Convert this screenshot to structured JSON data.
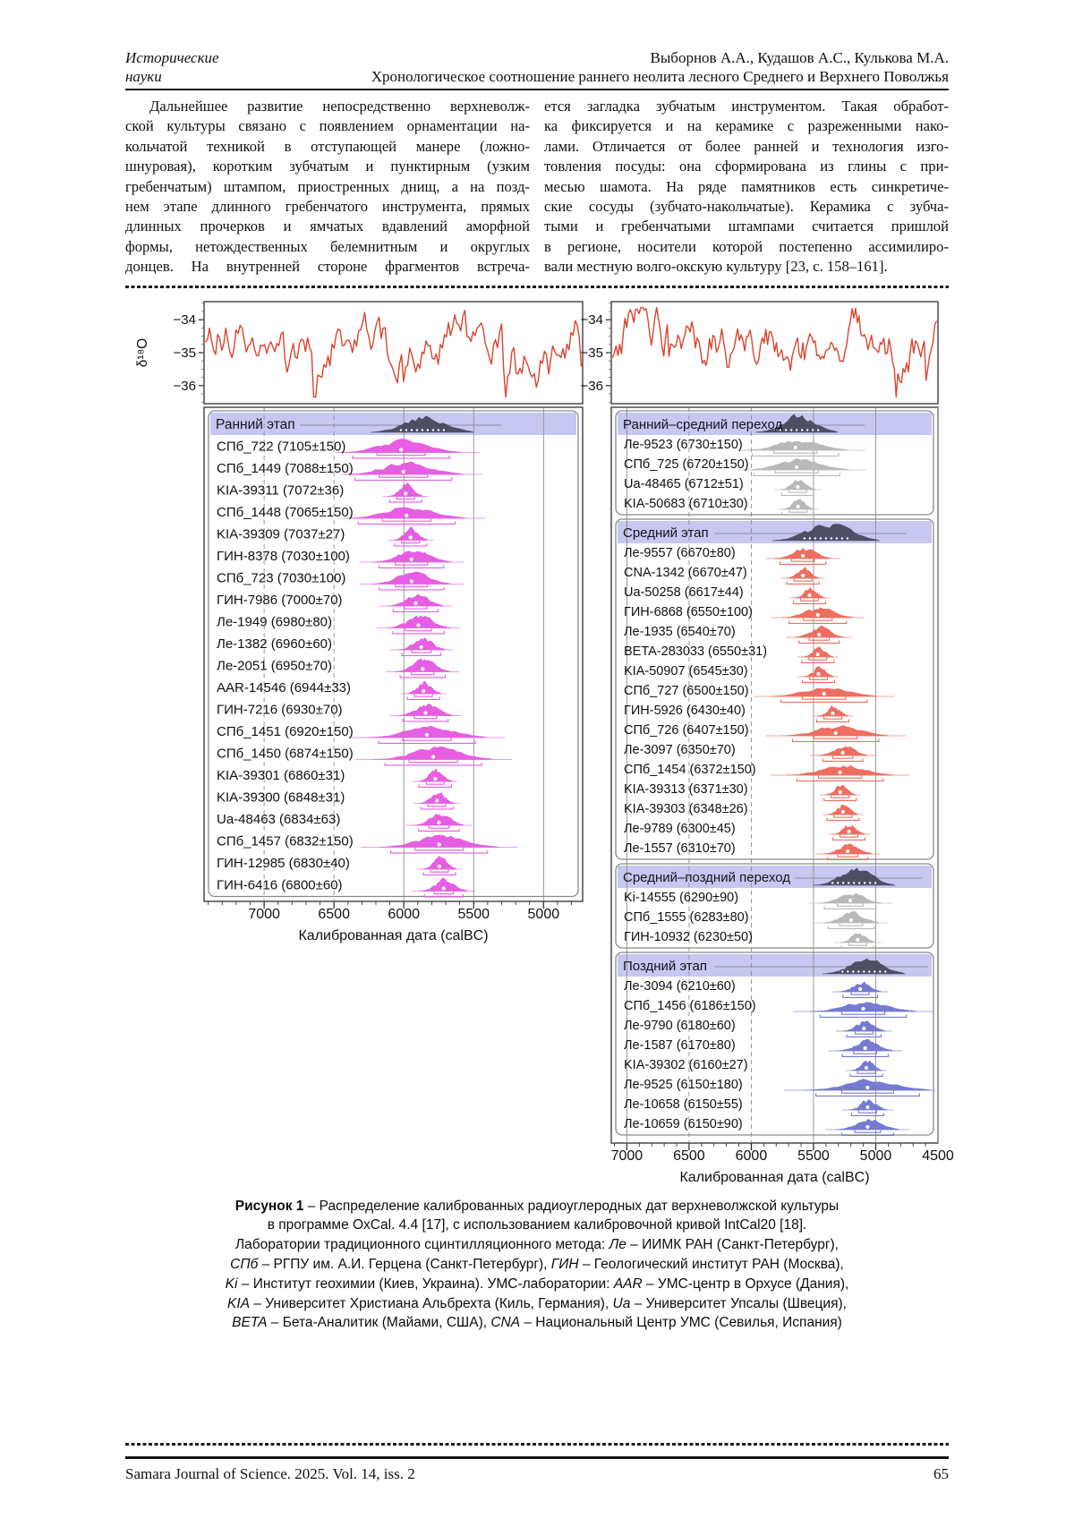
{
  "header": {
    "section_line1": "Исторические",
    "section_line2": "науки",
    "authors": "Выборнов А.А., Кудашов А.С., Кулькова М.А.",
    "title": "Хронологическое соотношение раннего неолита лесного Среднего и Верхнего Поволжья"
  },
  "body": {
    "left_lines": [
      "Дальнейшее развитие непосредственно верхневолж-",
      "ской культуры связано с появлением орнаментации на-",
      "кольчатой техникой в отступающей манере (ложно-",
      "шнуровая), коротким зубчатым и пунктирным (узким",
      "гребенчатым) штампом, приостренных днищ, а на позд-",
      "нем этапе длинного гребенчатого инструмента, прямых",
      "длинных прочерков и ямчатых вдавлений аморфной",
      "формы, нетождественных белемнитным и округлых",
      "донцев. На внутренней стороне фрагментов встреча-"
    ],
    "right_lines": [
      "ется загладка зубчатым инструментом. Такая обработ-",
      "ка фиксируется и на керамике с разреженными нако-",
      "лами. Отличается от более ранней и технология изго-",
      "товления посуды: она сформирована из глины с при-",
      "месью шамота. На ряде памятников есть синкретиче-",
      "ские сосуды (зубчато-накольчатые). Керамика с зубча-",
      "тыми и гребенчатыми штампами считается пришлой",
      "в регионе, носители которой постепенно ассимилиро-",
      "вали местную волго-окскую культуру [23, с. 158–161]."
    ]
  },
  "figure": {
    "oxy": {
      "ylabel": "δ¹⁸O",
      "yticks": [
        -34,
        -35,
        -36
      ],
      "curve_color": "#d9452f"
    },
    "axis_title": "Калиброванная дата (calBC)",
    "colors": {
      "early": "#e65fe2",
      "transition": "#b9b9b9",
      "middle": "#ee6e62",
      "late": "#767bd1",
      "summary": "#4b4b5f",
      "band": "#c7c7f1"
    },
    "left_panel": {
      "xticks": [
        7000,
        6500,
        6000,
        5500,
        5000
      ],
      "sections": [
        {
          "title": "Ранний этап",
          "color": "early",
          "dates": [
            {
              "label": "СПб_722 (7105±150)",
              "age": 7105,
              "err": 150
            },
            {
              "label": "СПб_1449 (7088±150)",
              "age": 7088,
              "err": 150
            },
            {
              "label": "KIA-39311 (7072±36)",
              "age": 7072,
              "err": 36
            },
            {
              "label": "СПб_1448 (7065±150)",
              "age": 7065,
              "err": 150
            },
            {
              "label": "KIA-39309 (7037±27)",
              "age": 7037,
              "err": 27
            },
            {
              "label": "ГИН-8378 (7030±100)",
              "age": 7030,
              "err": 100
            },
            {
              "label": "СПб_723 (7030±100)",
              "age": 7030,
              "err": 100
            },
            {
              "label": "ГИН-7986 (7000±70)",
              "age": 7000,
              "err": 70
            },
            {
              "label": "Ле-1949 (6980±80)",
              "age": 6980,
              "err": 80
            },
            {
              "label": "Ле-1382 (6960±60)",
              "age": 6960,
              "err": 60
            },
            {
              "label": "Ле-2051 (6950±70)",
              "age": 6950,
              "err": 70
            },
            {
              "label": "AAR-14546 (6944±33)",
              "age": 6944,
              "err": 33
            },
            {
              "label": "ГИН-7216 (6930±70)",
              "age": 6930,
              "err": 70
            },
            {
              "label": "СПб_1451 (6920±150)",
              "age": 6920,
              "err": 150
            },
            {
              "label": "СПб_1450 (6874±150)",
              "age": 6874,
              "err": 150
            },
            {
              "label": "KIA-39301 (6860±31)",
              "age": 6860,
              "err": 31
            },
            {
              "label": "KIA-39300 (6848±31)",
              "age": 6848,
              "err": 31
            },
            {
              "label": "Ua-48463 (6834±63)",
              "age": 6834,
              "err": 63
            },
            {
              "label": "СПб_1457 (6832±150)",
              "age": 6832,
              "err": 150
            },
            {
              "label": "ГИН-12985 (6830±40)",
              "age": 6830,
              "err": 40
            },
            {
              "label": "ГИН-6416 (6800±60)",
              "age": 6800,
              "err": 60
            }
          ]
        }
      ]
    },
    "right_panel": {
      "xticks": [
        7000,
        6500,
        6000,
        5500,
        5000,
        4500
      ],
      "sections": [
        {
          "title": "Ранний–средний переход",
          "color": "transition",
          "dates": [
            {
              "label": "Ле-9523 (6730±150)",
              "age": 6730,
              "err": 150
            },
            {
              "label": "СПб_725 (6720±150)",
              "age": 6720,
              "err": 150
            },
            {
              "label": "Ua-48465 (6712±51)",
              "age": 6712,
              "err": 51
            },
            {
              "label": "KIA-50683 (6710±30)",
              "age": 6710,
              "err": 30
            }
          ]
        },
        {
          "title": "Средний этап",
          "color": "middle",
          "dates": [
            {
              "label": "Ле-9557 (6670±80)",
              "age": 6670,
              "err": 80
            },
            {
              "label": "CNA-1342 (6670±47)",
              "age": 6670,
              "err": 47
            },
            {
              "label": "Ua-50258 (6617±44)",
              "age": 6617,
              "err": 44
            },
            {
              "label": "ГИН-6868 (6550±100)",
              "age": 6550,
              "err": 100
            },
            {
              "label": "Ле-1935 (6540±70)",
              "age": 6540,
              "err": 70
            },
            {
              "label": "BETA-283033 (6550±31)",
              "age": 6550,
              "err": 31
            },
            {
              "label": "KIA-50907 (6545±30)",
              "age": 6545,
              "err": 30
            },
            {
              "label": "СПб_727 (6500±150)",
              "age": 6500,
              "err": 150
            },
            {
              "label": "ГИН-5926 (6430±40)",
              "age": 6430,
              "err": 40
            },
            {
              "label": "СПб_726 (6407±150)",
              "age": 6407,
              "err": 150
            },
            {
              "label": "Ле-3097 (6350±70)",
              "age": 6350,
              "err": 70
            },
            {
              "label": "СПб_1454 (6372±150)",
              "age": 6372,
              "err": 150
            },
            {
              "label": "KIA-39313 (6371±30)",
              "age": 6371,
              "err": 30
            },
            {
              "label": "KIA-39303 (6348±26)",
              "age": 6348,
              "err": 26
            },
            {
              "label": "Ле-9789 (6300±45)",
              "age": 6300,
              "err": 45
            },
            {
              "label": "Ле-1557 (6310±70)",
              "age": 6310,
              "err": 70
            }
          ]
        },
        {
          "title": "Средний–поздний переход",
          "color": "transition",
          "dates": [
            {
              "label": "Ki-14555 (6290±90)",
              "age": 6290,
              "err": 90
            },
            {
              "label": "СПб_1555 (6283±80)",
              "age": 6283,
              "err": 80
            },
            {
              "label": "ГИН-10932 (6230±50)",
              "age": 6230,
              "err": 50
            }
          ]
        },
        {
          "title": "Поздний этап",
          "color": "late",
          "dates": [
            {
              "label": "Ле-3094 (6210±60)",
              "age": 6210,
              "err": 60
            },
            {
              "label": "СПб_1456 (6186±150)",
              "age": 6186,
              "err": 150
            },
            {
              "label": "Ле-9790 (6180±60)",
              "age": 6180,
              "err": 60
            },
            {
              "label": "Ле-1587 (6170±80)",
              "age": 6170,
              "err": 80
            },
            {
              "label": "KIA-39302 (6160±27)",
              "age": 6160,
              "err": 27
            },
            {
              "label": "Ле-9525 (6150±180)",
              "age": 6150,
              "err": 180
            },
            {
              "label": "Ле-10658 (6150±55)",
              "age": 6150,
              "err": 55
            },
            {
              "label": "Ле-10659 (6150±90)",
              "age": 6150,
              "err": 90
            }
          ]
        }
      ]
    }
  },
  "caption": {
    "lines": [
      [
        {
          "t": "Рисунок 1",
          "b": true
        },
        {
          "t": " – Распределение калиброванных радиоуглеродных дат верхневолжской культуры"
        }
      ],
      [
        {
          "t": "в программе OxCal. 4.4 [17], с использованием калибровочной кривой IntCal20 [18]."
        }
      ],
      [
        {
          "t": "Лаборатории традиционного сцинтилляционного метода: "
        },
        {
          "t": "Ле",
          "i": true
        },
        {
          "t": " – ИИМК РАН (Санкт-Петербург),"
        }
      ],
      [
        {
          "t": "СПб",
          "i": true
        },
        {
          "t": " – РГПУ им. А.И. Герцена (Санкт-Петербург), "
        },
        {
          "t": "ГИН",
          "i": true
        },
        {
          "t": " – Геологический институт РАН (Москва),"
        }
      ],
      [
        {
          "t": "Ki",
          "i": true
        },
        {
          "t": " – Институт геохимии (Киев, Украина). УМС-лаборатории: "
        },
        {
          "t": "AAR",
          "i": true
        },
        {
          "t": " – УМС-центр в Орхусе (Дания),"
        }
      ],
      [
        {
          "t": "KIA",
          "i": true
        },
        {
          "t": " – Университет Христиана Альбрехта (Киль, Германия), "
        },
        {
          "t": "Ua",
          "i": true
        },
        {
          "t": " – Университет Упсалы (Швеция),"
        }
      ],
      [
        {
          "t": "BETA",
          "i": true
        },
        {
          "t": " – Бета-Аналитик (Майами, США), "
        },
        {
          "t": "CNA",
          "i": true
        },
        {
          "t": " – Национальный Центр УМС (Севилья, Испания)"
        }
      ]
    ]
  },
  "footer": {
    "journal": "Samara Journal of Science. 2025. Vol. 14, iss. 2",
    "page": "65"
  }
}
